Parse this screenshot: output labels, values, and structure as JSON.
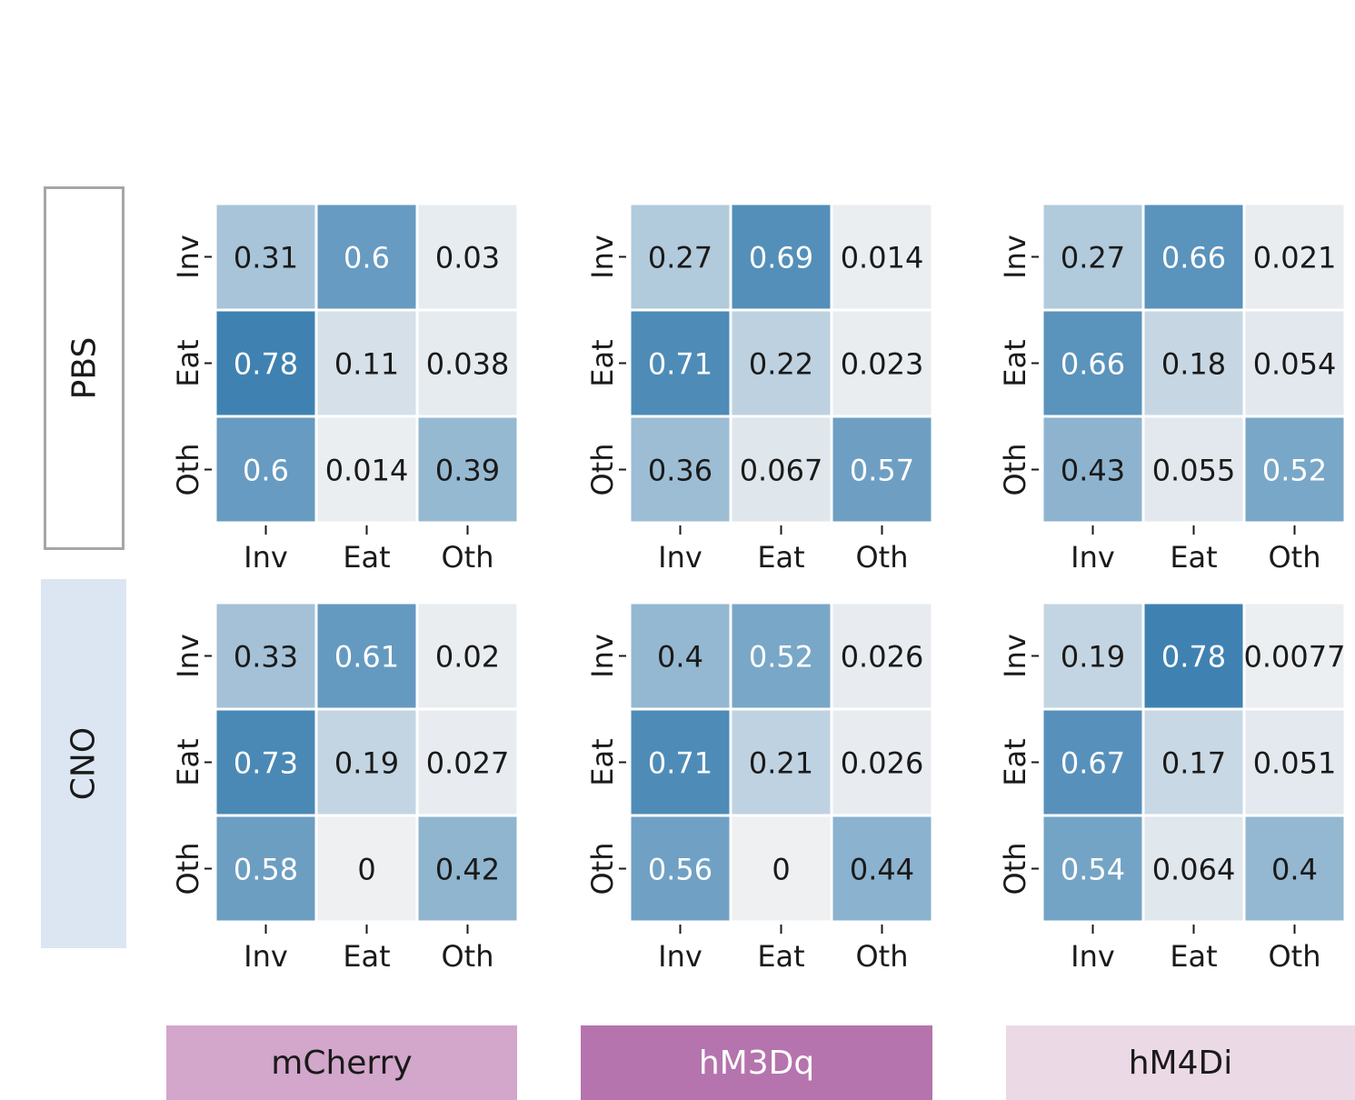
{
  "row_labels": [
    "PBS",
    "CNO"
  ],
  "column_labels": [
    "mCherry",
    "hM3Dq",
    "hM4Di"
  ],
  "colors": {
    "heat_low": "#eef0f2",
    "heat_high": "#3a7fb0",
    "pbs_border": "#a6a6a6",
    "cno_fill": "#dce6f2",
    "mcherry_fill": "#d3a6cb",
    "hm3dq_fill": "#b574ad",
    "hm4di_fill": "#ecd9e6"
  },
  "chart_data": [
    {
      "type": "heatmap",
      "row": "PBS",
      "column": "mCherry",
      "x_categories": [
        "Inv",
        "Eat",
        "Oth"
      ],
      "y_categories": [
        "Inv",
        "Eat",
        "Oth"
      ],
      "values": [
        [
          0.31,
          0.6,
          0.03
        ],
        [
          0.78,
          0.11,
          0.038
        ],
        [
          0.6,
          0.014,
          0.39
        ]
      ],
      "labels": [
        [
          "0.31",
          "0.6",
          "0.03"
        ],
        [
          "0.78",
          "0.11",
          "0.038"
        ],
        [
          "0.6",
          "0.014",
          "0.39"
        ]
      ]
    },
    {
      "type": "heatmap",
      "row": "PBS",
      "column": "hM3Dq",
      "x_categories": [
        "Inv",
        "Eat",
        "Oth"
      ],
      "y_categories": [
        "Inv",
        "Eat",
        "Oth"
      ],
      "values": [
        [
          0.27,
          0.69,
          0.014
        ],
        [
          0.71,
          0.22,
          0.023
        ],
        [
          0.36,
          0.067,
          0.57
        ]
      ],
      "labels": [
        [
          "0.27",
          "0.69",
          "0.014"
        ],
        [
          "0.71",
          "0.22",
          "0.023"
        ],
        [
          "0.36",
          "0.067",
          "0.57"
        ]
      ]
    },
    {
      "type": "heatmap",
      "row": "PBS",
      "column": "hM4Di",
      "x_categories": [
        "Inv",
        "Eat",
        "Oth"
      ],
      "y_categories": [
        "Inv",
        "Eat",
        "Oth"
      ],
      "values": [
        [
          0.27,
          0.66,
          0.021
        ],
        [
          0.66,
          0.18,
          0.054
        ],
        [
          0.43,
          0.055,
          0.52
        ]
      ],
      "labels": [
        [
          "0.27",
          "0.66",
          "0.021"
        ],
        [
          "0.66",
          "0.18",
          "0.054"
        ],
        [
          "0.43",
          "0.055",
          "0.52"
        ]
      ]
    },
    {
      "type": "heatmap",
      "row": "CNO",
      "column": "mCherry",
      "x_categories": [
        "Inv",
        "Eat",
        "Oth"
      ],
      "y_categories": [
        "Inv",
        "Eat",
        "Oth"
      ],
      "values": [
        [
          0.33,
          0.61,
          0.02
        ],
        [
          0.73,
          0.19,
          0.027
        ],
        [
          0.58,
          0,
          0.42
        ]
      ],
      "labels": [
        [
          "0.33",
          "0.61",
          "0.02"
        ],
        [
          "0.73",
          "0.19",
          "0.027"
        ],
        [
          "0.58",
          "0",
          "0.42"
        ]
      ]
    },
    {
      "type": "heatmap",
      "row": "CNO",
      "column": "hM3Dq",
      "x_categories": [
        "Inv",
        "Eat",
        "Oth"
      ],
      "y_categories": [
        "Inv",
        "Eat",
        "Oth"
      ],
      "values": [
        [
          0.4,
          0.52,
          0.026
        ],
        [
          0.71,
          0.21,
          0.026
        ],
        [
          0.56,
          0,
          0.44
        ]
      ],
      "labels": [
        [
          "0.4",
          "0.52",
          "0.026"
        ],
        [
          "0.71",
          "0.21",
          "0.026"
        ],
        [
          "0.56",
          "0",
          "0.44"
        ]
      ]
    },
    {
      "type": "heatmap",
      "row": "CNO",
      "column": "hM4Di",
      "x_categories": [
        "Inv",
        "Eat",
        "Oth"
      ],
      "y_categories": [
        "Inv",
        "Eat",
        "Oth"
      ],
      "values": [
        [
          0.19,
          0.78,
          0.0077
        ],
        [
          0.67,
          0.17,
          0.051
        ],
        [
          0.54,
          0.064,
          0.4
        ]
      ],
      "labels": [
        [
          "0.19",
          "0.78",
          "0.0077"
        ],
        [
          "0.67",
          "0.17",
          "0.051"
        ],
        [
          "0.54",
          "0.064",
          "0.4"
        ]
      ]
    }
  ]
}
